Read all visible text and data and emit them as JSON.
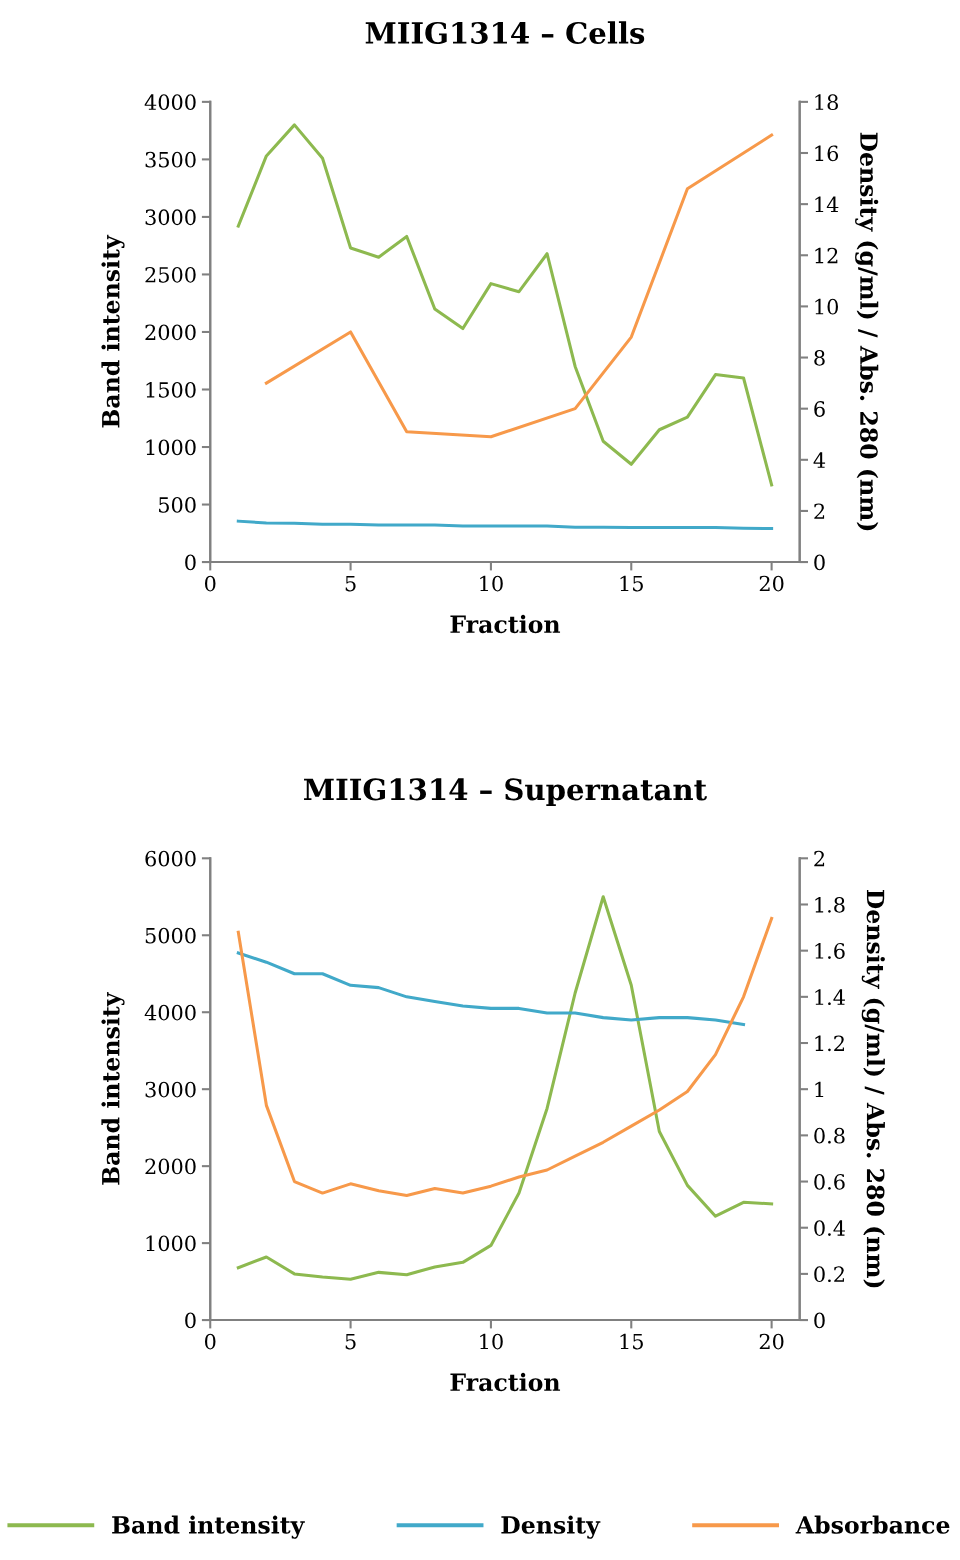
{
  "chart_data": [
    {
      "type": "line",
      "title": "MIIG1314 – Cells",
      "xlabel": "Fraction",
      "ylabel": "Band intensity",
      "y2label": "Density (g/ml) / Abs. 280 (nm)",
      "x": [
        1,
        2,
        3,
        4,
        5,
        6,
        7,
        8,
        9,
        10,
        11,
        12,
        13,
        14,
        15,
        16,
        17,
        18,
        19,
        20
      ],
      "xlim": [
        0,
        21
      ],
      "xticks": [
        0,
        5,
        10,
        15,
        20
      ],
      "ylim": [
        0,
        4000
      ],
      "yticks": [
        0,
        500,
        1000,
        1500,
        2000,
        2500,
        3000,
        3500,
        4000
      ],
      "y2lim": [
        0,
        18
      ],
      "y2ticks": [
        0,
        2,
        4,
        6,
        8,
        10,
        12,
        14,
        16,
        18
      ],
      "grid": false,
      "legend": false,
      "series": [
        {
          "color": "#8db94f",
          "values": [
            2920,
            3530,
            3800,
            3510,
            2730,
            2650,
            2830,
            2200,
            2030,
            2420,
            2350,
            2680,
            1700,
            1050,
            850,
            1150,
            1260,
            1630,
            1600,
            670
          ]
        },
        {
          "color": "#41a9c9",
          "axis": "y2",
          "values": [
            1.6,
            1.53,
            1.52,
            1.48,
            1.48,
            1.45,
            1.45,
            1.45,
            1.41,
            1.41,
            1.41,
            1.41,
            1.36,
            1.36,
            1.35,
            1.35,
            1.35,
            1.35,
            1.32,
            1.31
          ]
        },
        {
          "color": "#f7994a",
          "axis": "y2",
          "x": [
            2,
            5,
            7,
            10,
            13,
            15,
            17,
            20
          ],
          "values": [
            7.0,
            9.0,
            5.1,
            4.9,
            6.0,
            8.8,
            14.6,
            16.7
          ]
        }
      ]
    },
    {
      "type": "line",
      "title": "MIIG1314 – Supernatant",
      "xlabel": "Fraction",
      "ylabel": "Band intensity",
      "y2label": "Density (g/ml) / Abs. 280 (nm)",
      "x": [
        1,
        2,
        3,
        4,
        5,
        6,
        7,
        8,
        9,
        10,
        11,
        12,
        13,
        14,
        15,
        16,
        17,
        18,
        19,
        20
      ],
      "xlim": [
        0,
        21
      ],
      "xticks": [
        0,
        5,
        10,
        15,
        20
      ],
      "ylim": [
        0,
        6000
      ],
      "yticks": [
        0,
        1000,
        2000,
        3000,
        4000,
        5000,
        6000
      ],
      "y2lim": [
        0,
        2
      ],
      "y2ticks": [
        0,
        0.2,
        0.4,
        0.6,
        0.8,
        1,
        1.2,
        1.4,
        1.6,
        1.8,
        2
      ],
      "grid": false,
      "legend": "bottom",
      "series": [
        {
          "name": "Band intensity",
          "color": "#8db94f",
          "values": [
            680,
            820,
            600,
            560,
            530,
            620,
            590,
            690,
            750,
            970,
            1650,
            2750,
            4250,
            5500,
            4350,
            2450,
            1750,
            1350,
            1530,
            1510
          ]
        },
        {
          "name": "Density",
          "color": "#41a9c9",
          "axis": "y2",
          "values": [
            1.59,
            1.55,
            1.5,
            1.5,
            1.45,
            1.44,
            1.4,
            1.38,
            1.36,
            1.35,
            1.35,
            1.33,
            1.33,
            1.31,
            1.3,
            1.31,
            1.31,
            1.3,
            1.28,
            null
          ]
        },
        {
          "name": "Absorbance",
          "color": "#f7994a",
          "axis": "y2",
          "values": [
            1.68,
            0.93,
            0.6,
            0.55,
            0.59,
            0.56,
            0.54,
            0.57,
            0.55,
            0.58,
            0.62,
            0.65,
            0.71,
            0.77,
            0.84,
            0.91,
            0.99,
            1.15,
            1.4,
            1.74
          ]
        }
      ]
    }
  ]
}
